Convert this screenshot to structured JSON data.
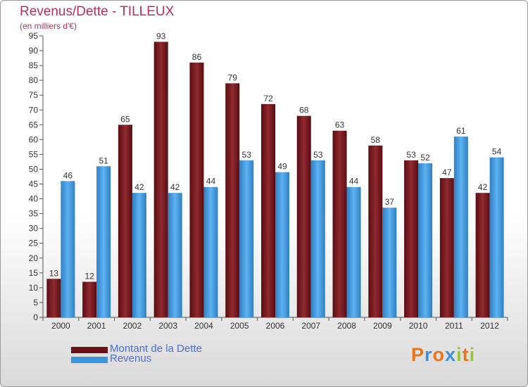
{
  "title": "Revenus/Dette - TILLEUX",
  "subtitle": "(en milliers d'€)",
  "logo_text": "Proxiti",
  "colors": {
    "dette": "#7b1a1f",
    "revenus": "#4a9fe0",
    "title": "#b03060",
    "legend_text": "#4b6fd8"
  },
  "chart_data": {
    "type": "bar",
    "categories": [
      "2000",
      "2001",
      "2002",
      "2003",
      "2004",
      "2005",
      "2006",
      "2007",
      "2008",
      "2009",
      "2010",
      "2011",
      "2012"
    ],
    "series": [
      {
        "name": "Montant de la Dette",
        "values": [
          13,
          12,
          65,
          93,
          86,
          79,
          72,
          68,
          63,
          58,
          53,
          47,
          42
        ]
      },
      {
        "name": "Revenus",
        "values": [
          46,
          51,
          42,
          42,
          44,
          53,
          49,
          53,
          44,
          37,
          52,
          61,
          54
        ]
      }
    ],
    "ylim": [
      0,
      95
    ],
    "yticks": [
      0,
      5,
      10,
      15,
      20,
      25,
      30,
      35,
      40,
      45,
      50,
      55,
      60,
      65,
      70,
      75,
      80,
      85,
      90,
      95
    ],
    "grid": false,
    "legend": "bottom-left"
  }
}
